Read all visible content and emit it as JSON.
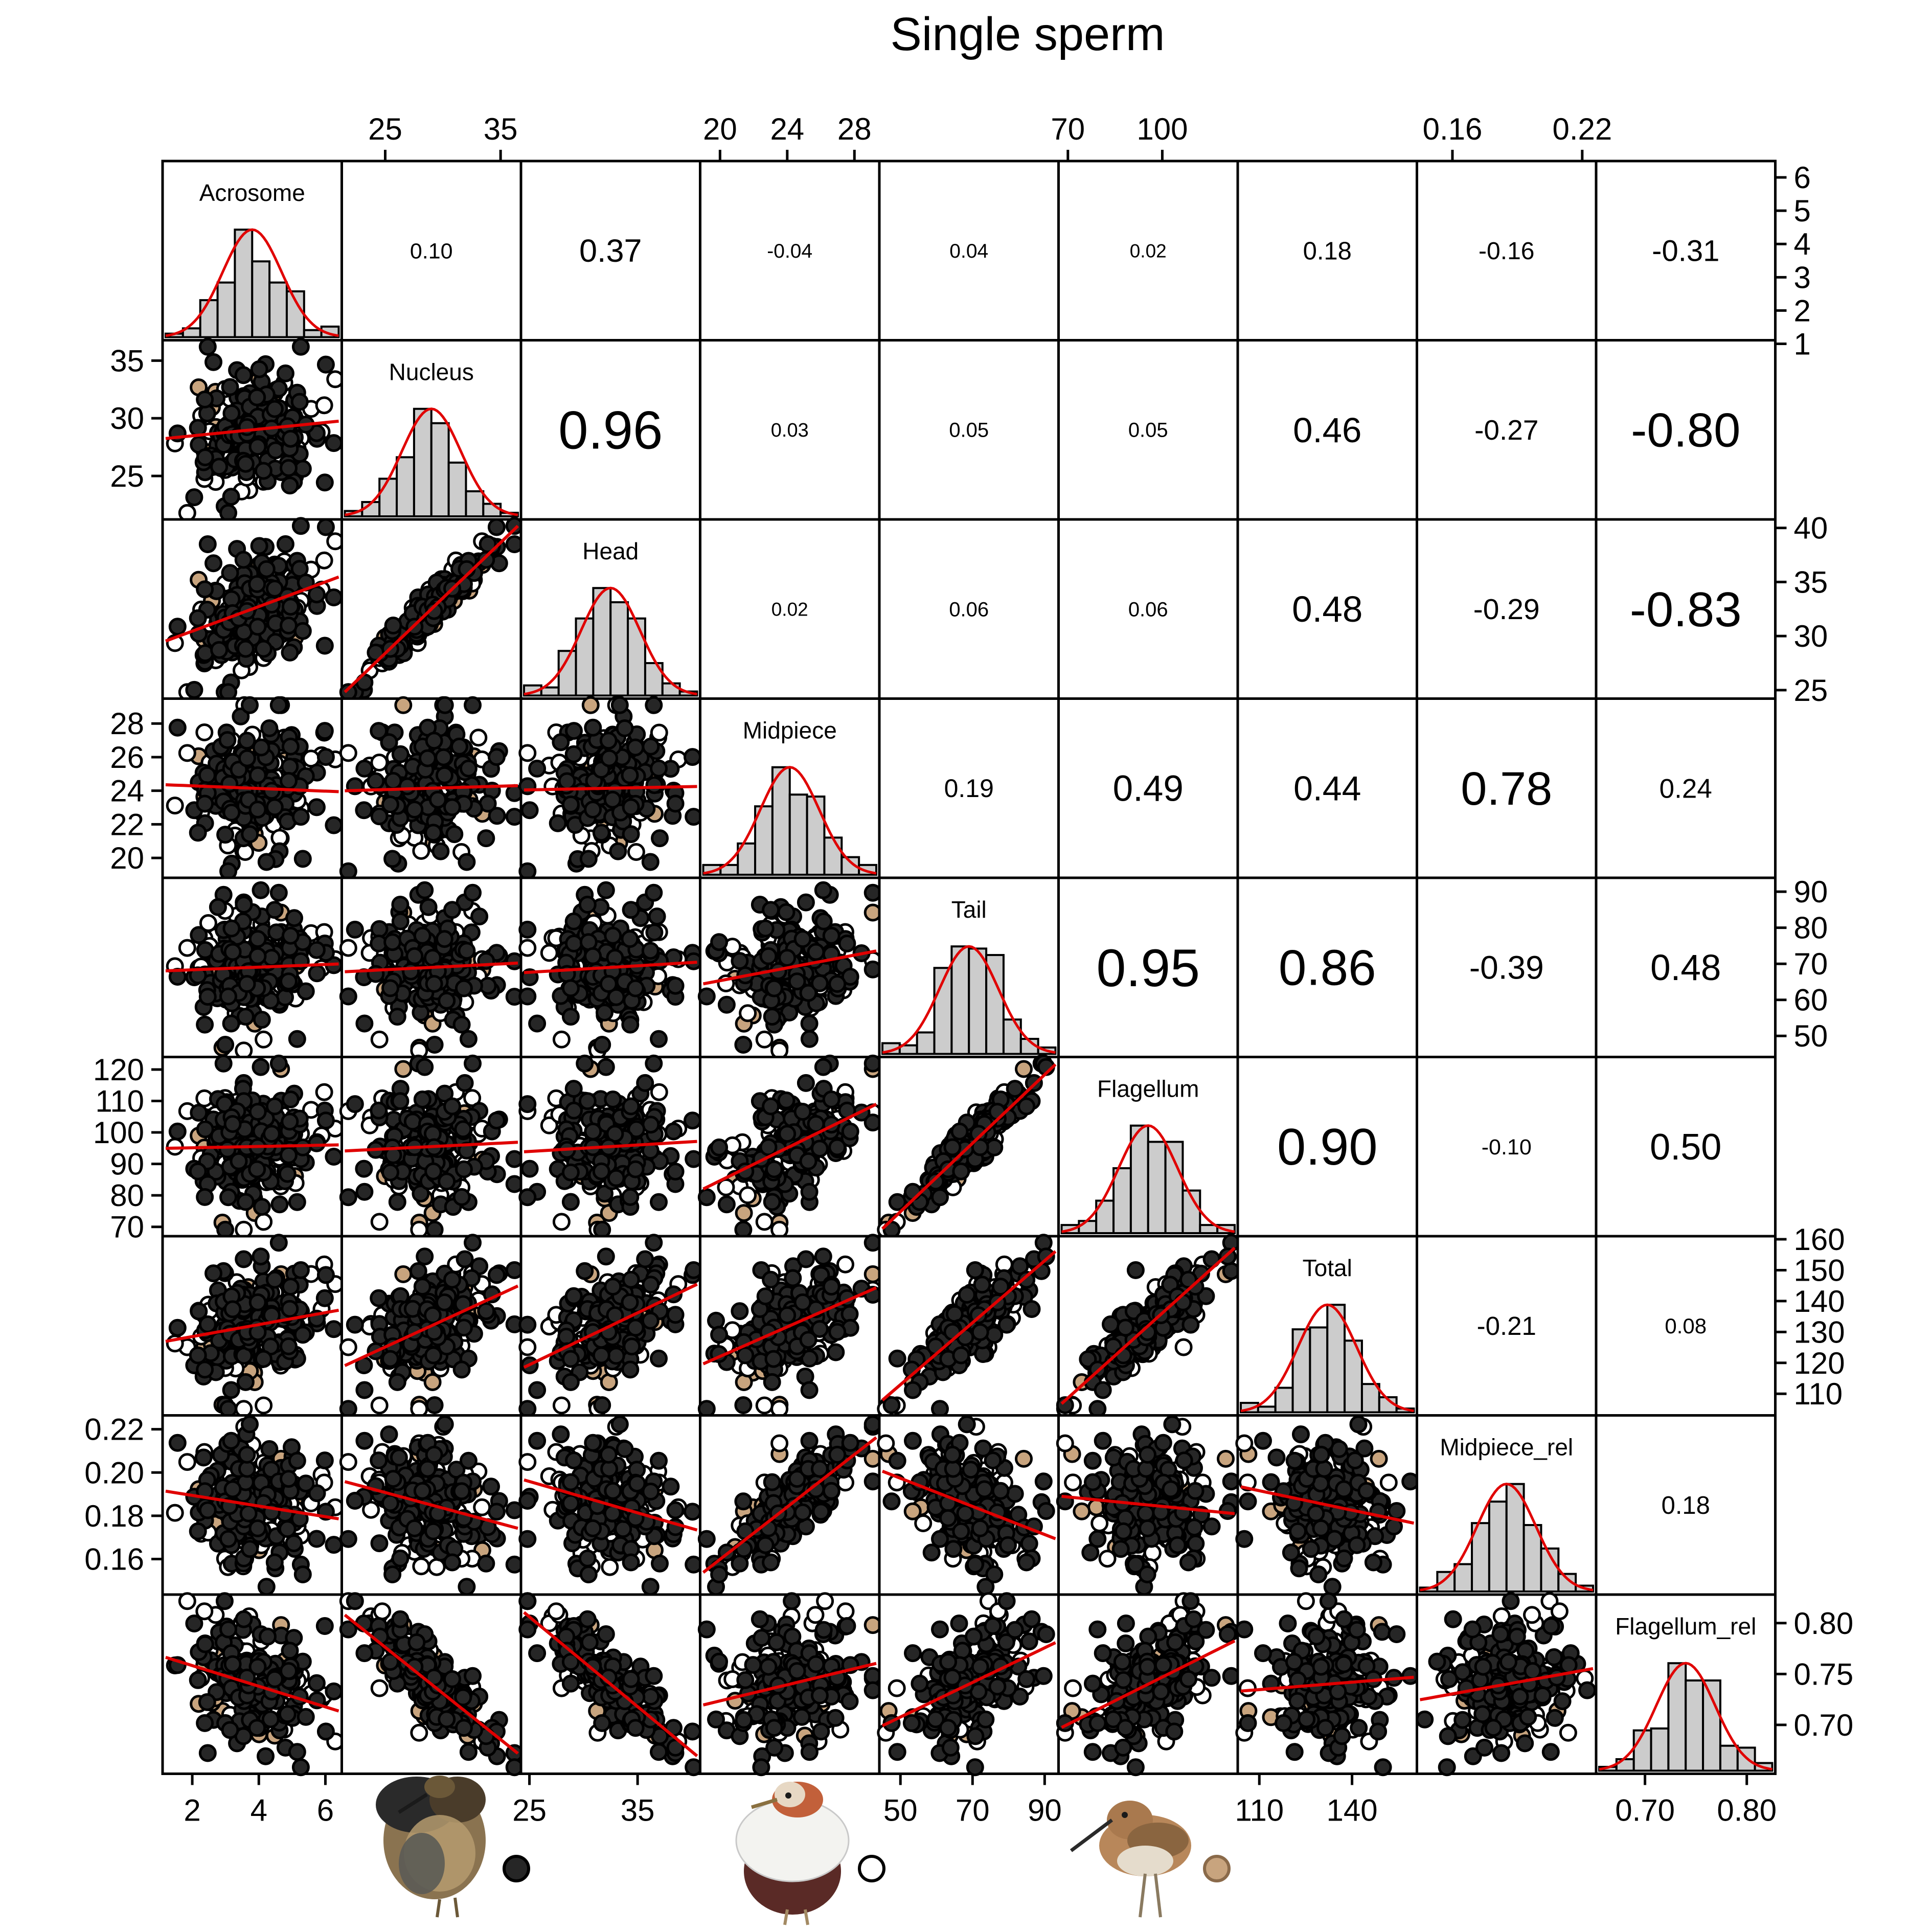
{
  "chart_data": {
    "type": "scatter-matrix",
    "title": "Single sperm",
    "variables": [
      "Acrosome",
      "Nucleus",
      "Head",
      "Midpiece",
      "Tail",
      "Flagellum",
      "Total",
      "Midpiece_rel",
      "Flagellum_rel"
    ],
    "ranges": [
      [
        1.2,
        6.4
      ],
      [
        21.5,
        36.5
      ],
      [
        24.5,
        40.5
      ],
      [
        19.0,
        29.3
      ],
      [
        45,
        93
      ],
      [
        68,
        123
      ],
      [
        104,
        160
      ],
      [
        0.145,
        0.225
      ],
      [
        0.655,
        0.825
      ]
    ],
    "ticks": {
      "Acrosome": {
        "bottom": [
          "2",
          "4",
          "6"
        ],
        "right": [
          "1",
          "2",
          "3",
          "4",
          "5",
          "6"
        ]
      },
      "Nucleus": {
        "top": [
          "25",
          "35"
        ],
        "left": [
          "25",
          "30",
          "35"
        ]
      },
      "Head": {
        "bottom": [
          "25",
          "35"
        ],
        "right": [
          "25",
          "30",
          "35",
          "40"
        ]
      },
      "Midpiece": {
        "top": [
          "20",
          "24",
          "28"
        ],
        "left": [
          "20",
          "22",
          "24",
          "26",
          "28"
        ]
      },
      "Tail": {
        "bottom": [
          "50",
          "70",
          "90"
        ],
        "right": [
          "50",
          "60",
          "70",
          "80",
          "90"
        ]
      },
      "Flagellum": {
        "top": [
          "70",
          "100"
        ],
        "left": [
          "70",
          "80",
          "90",
          "100",
          "110",
          "120"
        ]
      },
      "Total": {
        "bottom": [
          "110",
          "140"
        ],
        "right": [
          "110",
          "120",
          "130",
          "140",
          "150",
          "160"
        ]
      },
      "Midpiece_rel": {
        "top": [
          "0.16",
          "0.22"
        ],
        "left": [
          "0.16",
          "0.18",
          "0.20",
          "0.22"
        ]
      },
      "Flagellum_rel": {
        "bottom": [
          "0.70",
          "0.80"
        ],
        "right": [
          "0.70",
          "0.75",
          "0.80"
        ]
      }
    },
    "correlations": [
      {
        "pair": [
          "Acrosome",
          "Nucleus"
        ],
        "r": "0.10"
      },
      {
        "pair": [
          "Acrosome",
          "Head"
        ],
        "r": "0.37"
      },
      {
        "pair": [
          "Acrosome",
          "Midpiece"
        ],
        "r": "-0.04"
      },
      {
        "pair": [
          "Acrosome",
          "Tail"
        ],
        "r": "0.04"
      },
      {
        "pair": [
          "Acrosome",
          "Flagellum"
        ],
        "r": "0.02"
      },
      {
        "pair": [
          "Acrosome",
          "Total"
        ],
        "r": "0.18"
      },
      {
        "pair": [
          "Acrosome",
          "Midpiece_rel"
        ],
        "r": "-0.16"
      },
      {
        "pair": [
          "Acrosome",
          "Flagellum_rel"
        ],
        "r": "-0.31"
      },
      {
        "pair": [
          "Nucleus",
          "Head"
        ],
        "r": "0.96"
      },
      {
        "pair": [
          "Nucleus",
          "Midpiece"
        ],
        "r": "0.03"
      },
      {
        "pair": [
          "Nucleus",
          "Tail"
        ],
        "r": "0.05"
      },
      {
        "pair": [
          "Nucleus",
          "Flagellum"
        ],
        "r": "0.05"
      },
      {
        "pair": [
          "Nucleus",
          "Total"
        ],
        "r": "0.46"
      },
      {
        "pair": [
          "Nucleus",
          "Midpiece_rel"
        ],
        "r": "-0.27"
      },
      {
        "pair": [
          "Nucleus",
          "Flagellum_rel"
        ],
        "r": "-0.80"
      },
      {
        "pair": [
          "Head",
          "Midpiece"
        ],
        "r": "0.02"
      },
      {
        "pair": [
          "Head",
          "Tail"
        ],
        "r": "0.06"
      },
      {
        "pair": [
          "Head",
          "Flagellum"
        ],
        "r": "0.06"
      },
      {
        "pair": [
          "Head",
          "Total"
        ],
        "r": "0.48"
      },
      {
        "pair": [
          "Head",
          "Midpiece_rel"
        ],
        "r": "-0.29"
      },
      {
        "pair": [
          "Head",
          "Flagellum_rel"
        ],
        "r": "-0.83"
      },
      {
        "pair": [
          "Midpiece",
          "Tail"
        ],
        "r": "0.19"
      },
      {
        "pair": [
          "Midpiece",
          "Flagellum"
        ],
        "r": "0.49"
      },
      {
        "pair": [
          "Midpiece",
          "Total"
        ],
        "r": "0.44"
      },
      {
        "pair": [
          "Midpiece",
          "Midpiece_rel"
        ],
        "r": "0.78"
      },
      {
        "pair": [
          "Midpiece",
          "Flagellum_rel"
        ],
        "r": "0.24"
      },
      {
        "pair": [
          "Tail",
          "Flagellum"
        ],
        "r": "0.95"
      },
      {
        "pair": [
          "Tail",
          "Total"
        ],
        "r": "0.86"
      },
      {
        "pair": [
          "Tail",
          "Midpiece_rel"
        ],
        "r": "-0.39"
      },
      {
        "pair": [
          "Tail",
          "Flagellum_rel"
        ],
        "r": "0.48"
      },
      {
        "pair": [
          "Flagellum",
          "Total"
        ],
        "r": "0.90"
      },
      {
        "pair": [
          "Flagellum",
          "Midpiece_rel"
        ],
        "r": "-0.10"
      },
      {
        "pair": [
          "Flagellum",
          "Flagellum_rel"
        ],
        "r": "0.50"
      },
      {
        "pair": [
          "Total",
          "Midpiece_rel"
        ],
        "r": "-0.21"
      },
      {
        "pair": [
          "Total",
          "Flagellum_rel"
        ],
        "r": "0.08"
      },
      {
        "pair": [
          "Midpiece_rel",
          "Flagellum_rel"
        ],
        "r": "0.18"
      }
    ],
    "groups": [
      {
        "morph": "dark ruff male",
        "marker_fill": "#262626"
      },
      {
        "morph": "white ruff male",
        "marker_fill": "#ffffff"
      },
      {
        "morph": "faeder",
        "marker_fill": "#c8a47e"
      }
    ],
    "smoother_color": "#e00000",
    "histogram_fill": "#cccccc"
  }
}
